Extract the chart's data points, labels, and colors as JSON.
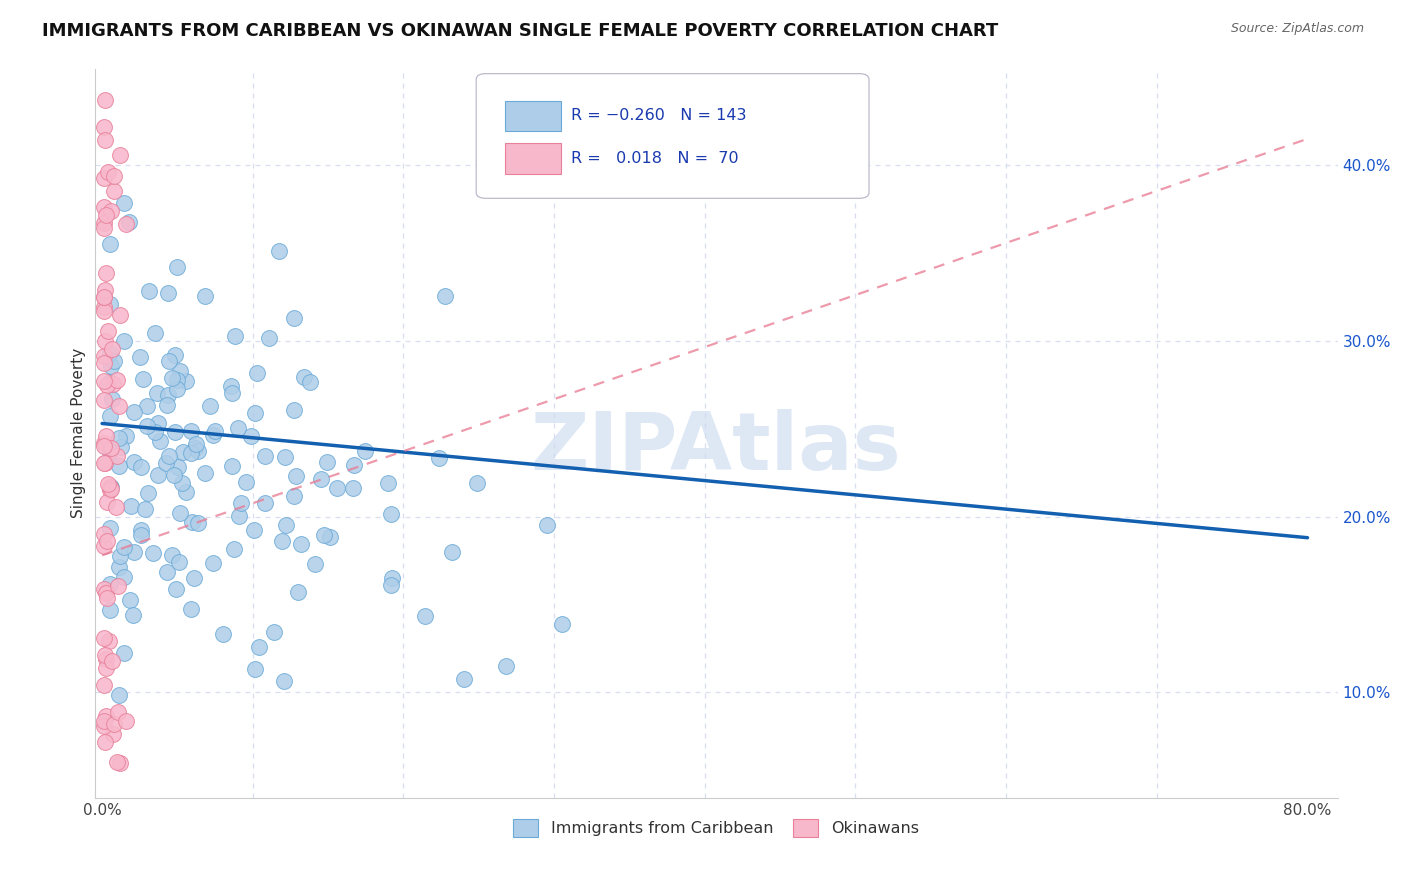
{
  "title": "IMMIGRANTS FROM CARIBBEAN VS OKINAWAN SINGLE FEMALE POVERTY CORRELATION CHART",
  "source": "Source: ZipAtlas.com",
  "ylabel": "Single Female Poverty",
  "x_tick_labels": [
    "0.0%",
    "",
    "",
    "",
    "",
    "",
    "",
    "",
    "80.0%"
  ],
  "y_ticks": [
    0.1,
    0.2,
    0.3,
    0.4
  ],
  "y_tick_labels": [
    "10.0%",
    "20.0%",
    "30.0%",
    "40.0%"
  ],
  "xlim": [
    -0.005,
    0.82
  ],
  "ylim": [
    0.04,
    0.455
  ],
  "legend_labels_bottom": [
    "Immigrants from Caribbean",
    "Okinawans"
  ],
  "caribbean_color": "#aecde8",
  "caribbean_edge": "#6aaad8",
  "okinawan_color": "#f8b8cc",
  "okinawan_edge": "#e8809a",
  "trendline_caribbean_color": "#1460b0",
  "trendline_okinawan_color": "#e87890",
  "watermark": "ZIPAtlas",
  "watermark_color": "#c8d8ee",
  "background_color": "#ffffff",
  "grid_color": "#d8dff0",
  "title_fontsize": 13,
  "axis_label_fontsize": 11,
  "tick_fontsize": 11,
  "caribbean_R": -0.26,
  "caribbean_N": 143,
  "okinawan_R": 0.018,
  "okinawan_N": 70,
  "blue_line_x0": 0.0,
  "blue_line_y0": 0.253,
  "blue_line_x1": 0.8,
  "blue_line_y1": 0.188,
  "pink_line_x0": 0.0,
  "pink_line_y0": 0.178,
  "pink_line_x1": 0.8,
  "pink_line_y1": 0.415
}
